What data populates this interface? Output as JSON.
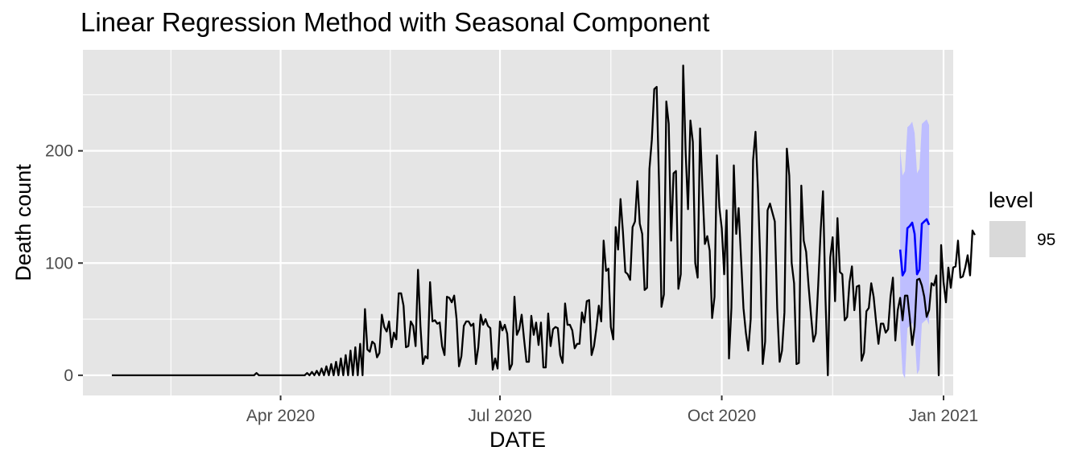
{
  "chart_data": {
    "type": "line",
    "title": "Linear Regression Method with Seasonal Component",
    "xlabel": "DATE",
    "ylabel": "Death count",
    "x_ticks": [
      "Apr 2020",
      "Jul 2020",
      "Oct 2020",
      "Jan 2021"
    ],
    "y_ticks": [
      "0",
      "100",
      "200"
    ],
    "ylim": [
      -18,
      290
    ],
    "xlim": [
      "2020-01-10",
      "2021-01-05"
    ],
    "grid": true,
    "legend": {
      "title": "level",
      "position": "right",
      "entries": [
        "95"
      ]
    },
    "colors": {
      "panel_bg": "#e5e5e5",
      "grid": "#ffffff",
      "history": "#000000",
      "forecast": "#0000ff",
      "interval": "#bebeff",
      "legend_key": "#d9d9d9"
    },
    "series": [
      {
        "role": "history",
        "start_date": "2020-01-22",
        "values": [
          0,
          0,
          0,
          0,
          0,
          0,
          0,
          0,
          0,
          0,
          0,
          0,
          0,
          0,
          0,
          0,
          0,
          0,
          0,
          0,
          0,
          0,
          0,
          0,
          0,
          0,
          0,
          0,
          0,
          0,
          0,
          0,
          0,
          0,
          0,
          0,
          0,
          0,
          0,
          0,
          0,
          0,
          0,
          0,
          0,
          0,
          0,
          0,
          0,
          0,
          0,
          0,
          0,
          0,
          0,
          0,
          0,
          0,
          0,
          0,
          2,
          0,
          0,
          0,
          0,
          0,
          0,
          0,
          0,
          0,
          0,
          0,
          0,
          0,
          0,
          0,
          0,
          0,
          0,
          0,
          0,
          2,
          0,
          3,
          0,
          4,
          0,
          6,
          0,
          8,
          0,
          10,
          0,
          12,
          0,
          15,
          0,
          18,
          0,
          22,
          0,
          25,
          0,
          28,
          0,
          59,
          23,
          21,
          30,
          28,
          16,
          20,
          54,
          43,
          39,
          48,
          25,
          38,
          32,
          73,
          73,
          62,
          25,
          26,
          48,
          44,
          26,
          94,
          44,
          10,
          17,
          15,
          83,
          48,
          49,
          46,
          47,
          26,
          18,
          70,
          69,
          65,
          71,
          50,
          8,
          17,
          44,
          48,
          48,
          44,
          46,
          10,
          25,
          54,
          45,
          50,
          44,
          42,
          5,
          15,
          6,
          48,
          40,
          45,
          37,
          5,
          10,
          70,
          36,
          41,
          54,
          32,
          12,
          12,
          53,
          36,
          47,
          27,
          47,
          7,
          7,
          55,
          26,
          41,
          43,
          42,
          18,
          11,
          64,
          45,
          45,
          40,
          24,
          28,
          28,
          56,
          47,
          66,
          67,
          18,
          26,
          42,
          62,
          48,
          120,
          93,
          95,
          43,
          32,
          132,
          112,
          157,
          128,
          92,
          90,
          85,
          132,
          137,
          173,
          135,
          126,
          76,
          78,
          184,
          210,
          255,
          257,
          170,
          61,
          72,
          244,
          224,
          120,
          180,
          182,
          77,
          90,
          276,
          200,
          148,
          227,
          208,
          100,
          87,
          220,
          167,
          117,
          124,
          111,
          51,
          70,
          196,
          150,
          131,
          90,
          147,
          15,
          60,
          187,
          126,
          149,
          104,
          60,
          38,
          22,
          50,
          192,
          217,
          166,
          100,
          10,
          30,
          147,
          153,
          145,
          137,
          60,
          12,
          22,
          56,
          202,
          178,
          100,
          82,
          10,
          11,
          169,
          120,
          110,
          80,
          54,
          30,
          37,
          80,
          128,
          164,
          70,
          0,
          105,
          123,
          66,
          140,
          92,
          90,
          49,
          52,
          83,
          97,
          58,
          79,
          80,
          13,
          20,
          57,
          60,
          82,
          70,
          48,
          28,
          46,
          46,
          38,
          41,
          70,
          87,
          31,
          58,
          69,
          49,
          71,
          71,
          51,
          27,
          43,
          85,
          86,
          80,
          70,
          52,
          58,
          82,
          80,
          89,
          0,
          116,
          83,
          65,
          96,
          78,
          96,
          97,
          120,
          87,
          88,
          96,
          107,
          89,
          129,
          125
        ]
      },
      {
        "role": "forecast",
        "start_date": "2020-12-14",
        "values": [
          112,
          89,
          93,
          131,
          133,
          136,
          126,
          90,
          94,
          135,
          137,
          139,
          134
        ],
        "interval_lower": [
          42,
          2,
          -3,
          42,
          44,
          47,
          37,
          1,
          5,
          46,
          48,
          50,
          45
        ],
        "interval_upper": [
          202,
          178,
          182,
          221,
          223,
          226,
          216,
          180,
          184,
          224,
          226,
          228,
          223
        ]
      }
    ]
  }
}
